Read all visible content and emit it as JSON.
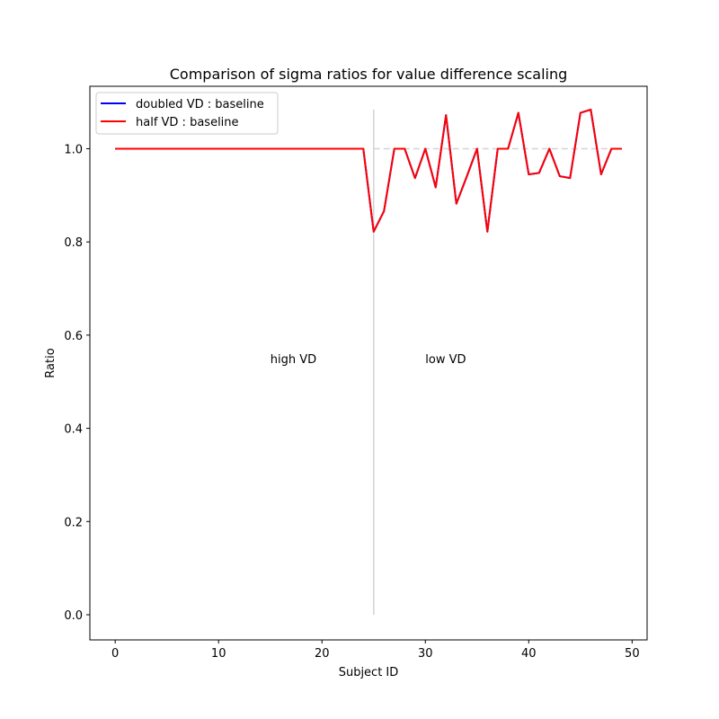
{
  "chart_data": {
    "type": "line",
    "title": "Comparison of sigma ratios for value difference scaling",
    "xlabel": "Subject ID",
    "ylabel": "Ratio",
    "xlim": [
      -2.45,
      51.45
    ],
    "ylim": [
      -0.054,
      1.134
    ],
    "xticks": [
      0,
      10,
      20,
      30,
      40,
      50
    ],
    "xtick_labels": [
      "0",
      "10",
      "20",
      "30",
      "40",
      "50"
    ],
    "yticks": [
      0.0,
      0.2,
      0.4,
      0.6,
      0.8,
      1.0
    ],
    "ytick_labels": [
      "0.0",
      "0.2",
      "0.4",
      "0.6",
      "0.8",
      "1.0"
    ],
    "grid": false,
    "legend": "upper-left",
    "x": [
      0,
      1,
      2,
      3,
      4,
      5,
      6,
      7,
      8,
      9,
      10,
      11,
      12,
      13,
      14,
      15,
      16,
      17,
      18,
      19,
      20,
      21,
      22,
      23,
      24,
      25,
      26,
      27,
      28,
      29,
      30,
      31,
      32,
      33,
      34,
      35,
      36,
      37,
      38,
      39,
      40,
      41,
      42,
      43,
      44,
      45,
      46,
      47,
      48,
      49
    ],
    "series": [
      {
        "name": "doubled VD : baseline",
        "color": "#0000ff",
        "values": [
          1,
          1,
          1,
          1,
          1,
          1,
          1,
          1,
          1,
          1,
          1,
          1,
          1,
          1,
          1,
          1,
          1,
          1,
          1,
          1,
          1,
          1,
          1,
          1,
          1,
          0.822,
          0.866,
          1,
          1,
          0.937,
          1,
          0.917,
          1.072,
          0.882,
          0.94,
          1,
          0.822,
          1,
          1,
          1.077,
          0.945,
          0.948,
          1,
          0.941,
          0.937,
          1.077,
          1.084,
          0.945,
          1,
          1
        ]
      },
      {
        "name": "half VD : baseline",
        "color": "#ff0000",
        "values": [
          1,
          1,
          1,
          1,
          1,
          1,
          1,
          1,
          1,
          1,
          1,
          1,
          1,
          1,
          1,
          1,
          1,
          1,
          1,
          1,
          1,
          1,
          1,
          1,
          1,
          0.822,
          0.866,
          1,
          1,
          0.937,
          1,
          0.917,
          1.072,
          0.882,
          0.94,
          1,
          0.822,
          1,
          1,
          1.077,
          0.945,
          0.948,
          1,
          0.941,
          0.937,
          1.077,
          1.084,
          0.945,
          1,
          1
        ]
      }
    ],
    "reference_lines": {
      "vertical": {
        "x": 25,
        "y_from": 0,
        "y_to": 1.084,
        "color": "#d3d3d3"
      },
      "horizontal": {
        "y": 1.0,
        "x_from": 25,
        "x_to": 49,
        "style": "dashed",
        "color": "#d3d3d3"
      }
    },
    "annotations": [
      {
        "text": "high VD",
        "x": 15,
        "y": 0.55
      },
      {
        "text": "low VD",
        "x": 30,
        "y": 0.55
      }
    ]
  }
}
